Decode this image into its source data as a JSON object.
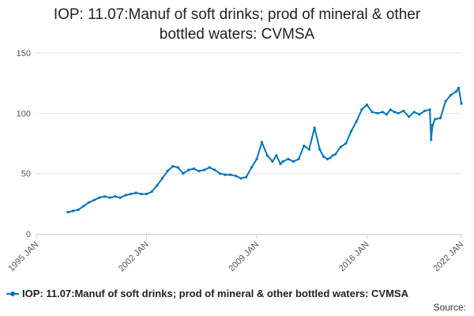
{
  "chart_data": {
    "type": "line",
    "title": "IOP: 11.07:Manuf of soft drinks; prod of mineral & other bottled waters: CVMSA",
    "title_lines": [
      "IOP: 11.07:Manuf of soft drinks; prod of mineral & other",
      "bottled waters: CVMSA"
    ],
    "xlabel": "",
    "ylabel": "",
    "ylim": [
      0,
      150
    ],
    "y_ticks": [
      0,
      50,
      100,
      150
    ],
    "x_range": [
      1995.0,
      2022.0
    ],
    "x_ticks": [
      {
        "value": 1995.0,
        "label": "1995 JAN"
      },
      {
        "value": 2002.0,
        "label": "2002 JAN"
      },
      {
        "value": 2009.0,
        "label": "2009 JAN"
      },
      {
        "value": 2016.0,
        "label": "2016 JAN"
      },
      {
        "value": 2022.0,
        "label": "2022 JAN"
      }
    ],
    "grid": "horizontal",
    "legend_position": "bottom-left",
    "series": [
      {
        "name": "IOP: 11.07:Manuf of soft drinks; prod of mineral & other bottled waters: CVMSA",
        "color": "#0075b7",
        "x": [
          1997.0,
          1997.33,
          1997.67,
          1998.0,
          1998.33,
          1998.67,
          1999.0,
          1999.33,
          1999.67,
          2000.0,
          2000.33,
          2000.67,
          2001.0,
          2001.33,
          2001.67,
          2002.0,
          2002.33,
          2002.67,
          2003.0,
          2003.33,
          2003.67,
          2004.0,
          2004.33,
          2004.67,
          2005.0,
          2005.33,
          2005.67,
          2006.0,
          2006.33,
          2006.67,
          2007.0,
          2007.33,
          2007.67,
          2008.0,
          2008.33,
          2008.67,
          2009.0,
          2009.33,
          2009.67,
          2010.0,
          2010.25,
          2010.5,
          2010.67,
          2011.0,
          2011.33,
          2011.67,
          2012.0,
          2012.33,
          2012.67,
          2013.0,
          2013.25,
          2013.5,
          2013.67,
          2013.83,
          2014.0,
          2014.33,
          2014.67,
          2015.0,
          2015.33,
          2015.67,
          2016.0,
          2016.33,
          2016.67,
          2017.0,
          2017.25,
          2017.5,
          2017.75,
          2018.0,
          2018.33,
          2018.67,
          2019.0,
          2019.33,
          2019.67,
          2020.0,
          2020.08,
          2020.17,
          2020.33,
          2020.67,
          2021.0,
          2021.33,
          2021.67,
          2021.83,
          2022.0
        ],
        "values": [
          18,
          19,
          20,
          23,
          26,
          28,
          30,
          31,
          30,
          31,
          30,
          32,
          33,
          34,
          33,
          33,
          35,
          40,
          46,
          52,
          56,
          55,
          50,
          53,
          54,
          52,
          53,
          55,
          53,
          50,
          49,
          49,
          48,
          46,
          47,
          55,
          62,
          76,
          65,
          60,
          65,
          58,
          60,
          62,
          60,
          62,
          73,
          70,
          88,
          70,
          64,
          62,
          63,
          65,
          66,
          72,
          75,
          85,
          93,
          103,
          107,
          101,
          100,
          101,
          99,
          103,
          101,
          100,
          102,
          97,
          101,
          99,
          102,
          103,
          78,
          90,
          95,
          96,
          110,
          115,
          118,
          121,
          108
        ]
      }
    ]
  },
  "legend": {
    "label": "IOP: 11.07:Manuf of soft drinks; prod of mineral & other bottled waters: CVMSA"
  },
  "source": {
    "label": "Source:"
  }
}
